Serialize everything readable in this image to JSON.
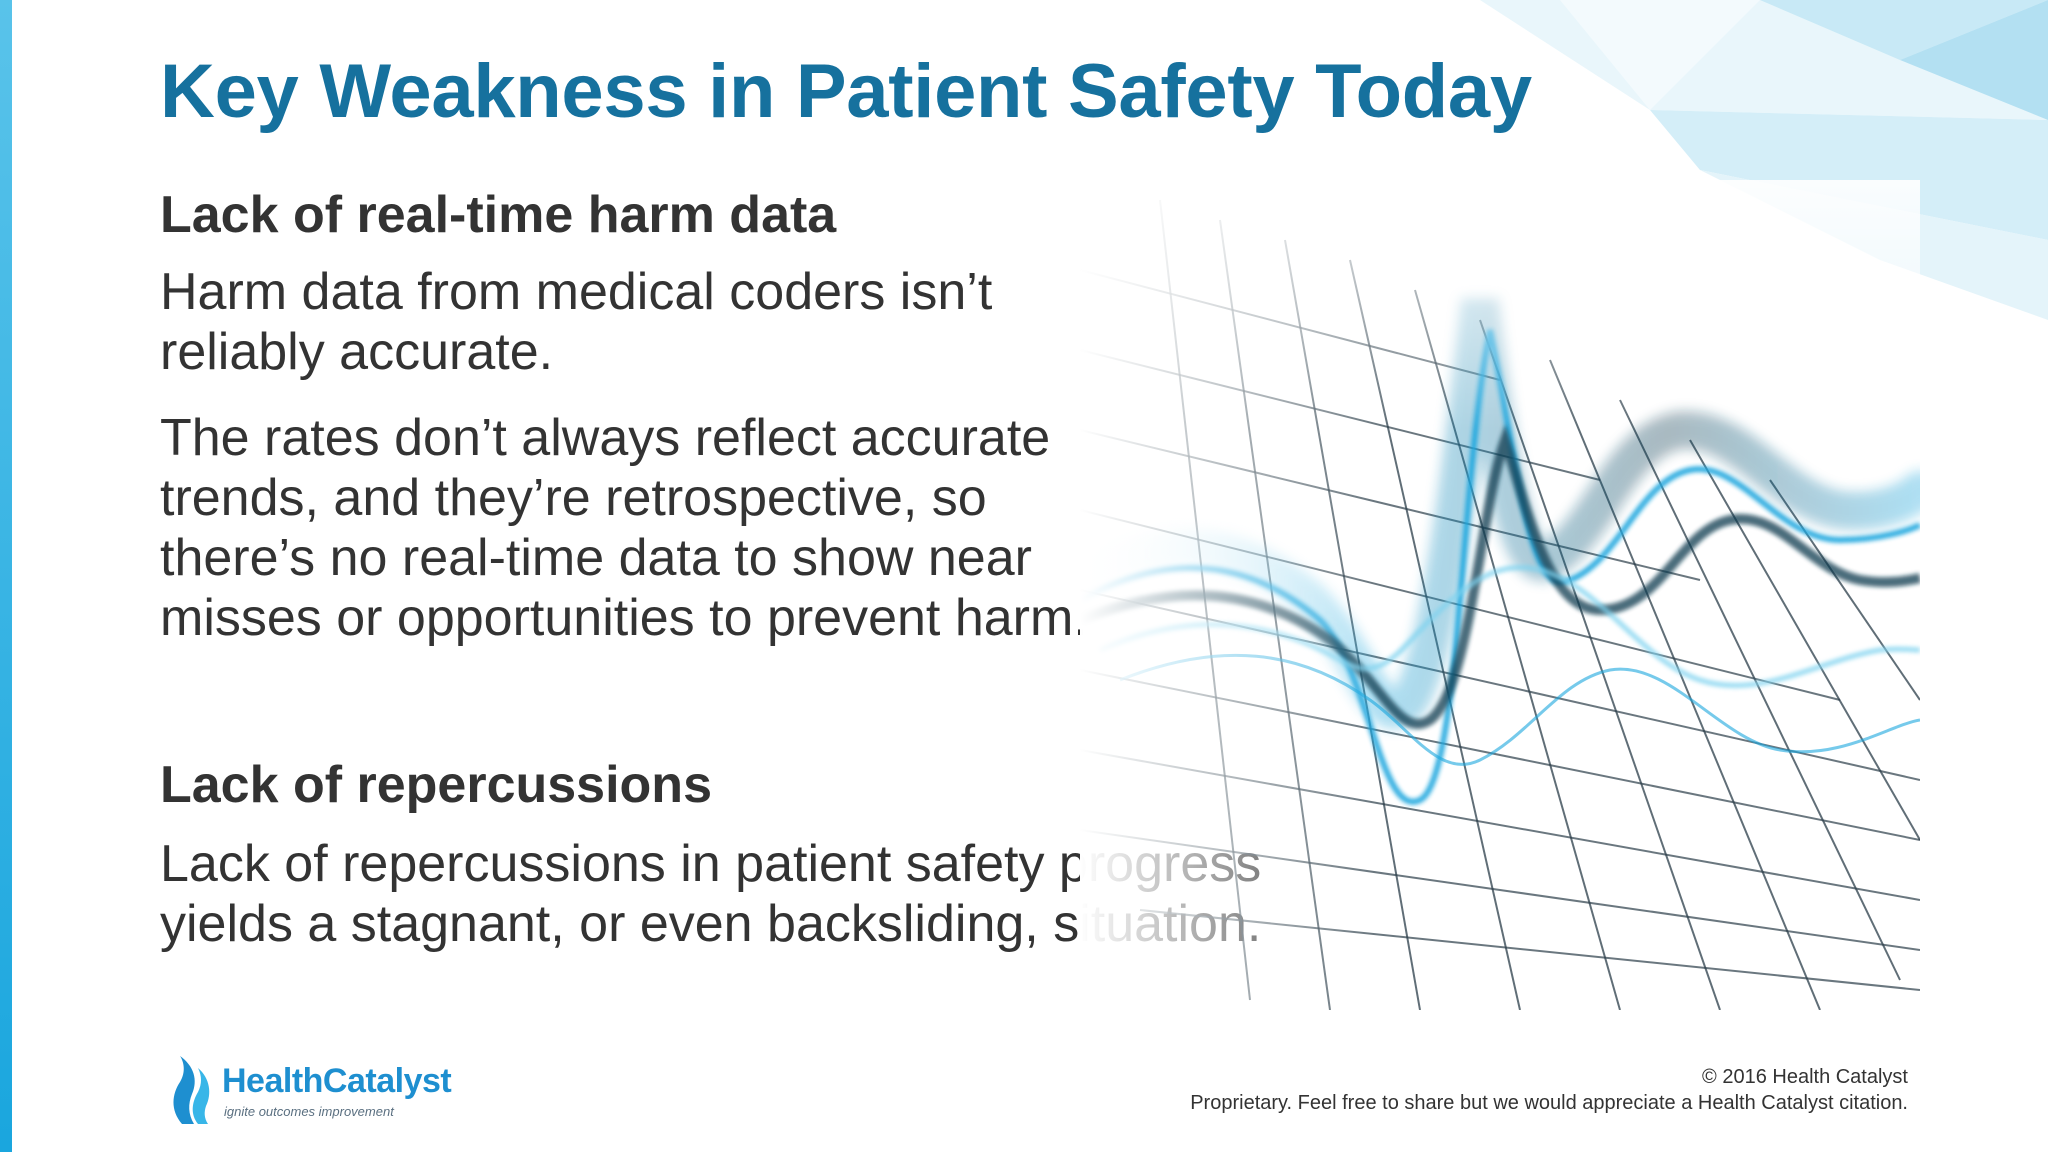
{
  "slide": {
    "title": "Key Weakness in Patient Safety Today",
    "sections": [
      {
        "heading": "Lack of real-time harm data",
        "paragraphs": [
          {
            "lines": [
              "Harm data from medical coders isn’t",
              "reliably accurate."
            ]
          },
          {
            "lines": [
              "The rates don’t always reflect accurate",
              "trends, and they’re retrospective, so",
              "there’s no real-time data to show near",
              "misses or opportunities to prevent harm."
            ]
          }
        ]
      },
      {
        "heading": "Lack of repercussions",
        "paragraphs": [
          {
            "lines": [
              "Lack of repercussions in patient safety progress",
              "yields a stagnant, or even backsliding, situation."
            ]
          }
        ]
      }
    ],
    "decoration": {
      "icon": "wave-grid-graphic-icon",
      "accent_color": "#16719e",
      "wave_colors": [
        "#1aa6de",
        "#0b3a4f",
        "#7fd3ef"
      ]
    }
  },
  "logo": {
    "icon": "flame-logo-icon",
    "name_part1": "Health",
    "name_part2": "Catalyst",
    "tagline": "ignite outcomes improvement"
  },
  "footer": {
    "copyright": "© 2016 Health Catalyst",
    "notice": "Proprietary. Feel free to share but we would appreciate a Health Catalyst citation."
  }
}
